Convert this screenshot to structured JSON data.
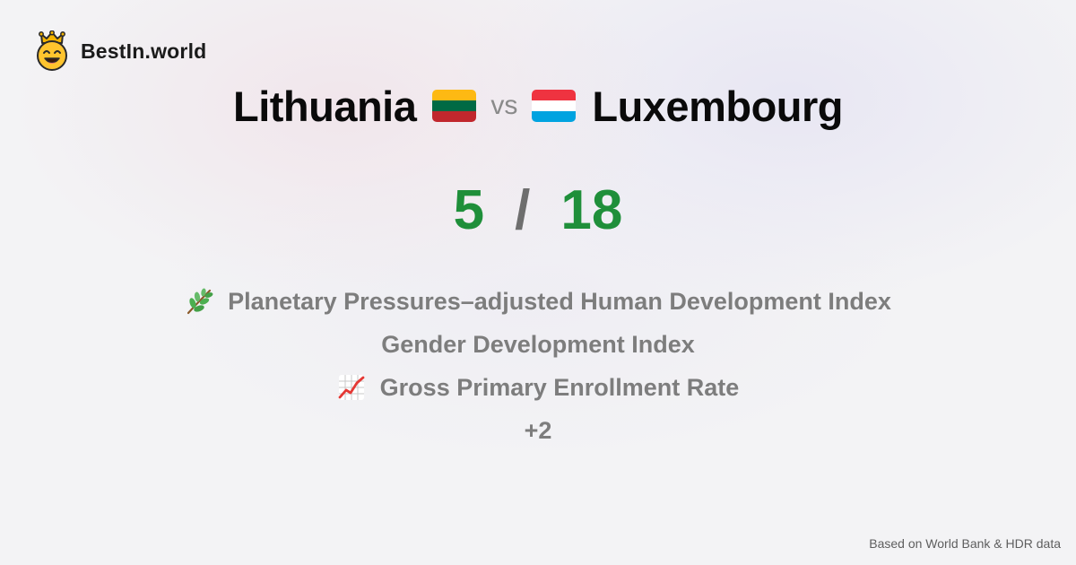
{
  "brand": {
    "name": "BestIn.world",
    "icon": "crown-smiley-icon"
  },
  "comparison": {
    "country_a": {
      "name": "Lithuania",
      "flag_icon": "lithuania-flag-icon",
      "flag_colors": [
        "#FDB913",
        "#006A44",
        "#C1272D"
      ]
    },
    "vs_label": "vs",
    "country_b": {
      "name": "Luxembourg",
      "flag_icon": "luxembourg-flag-icon",
      "flag_colors": [
        "#EF3340",
        "#FFFFFF",
        "#00A3E0"
      ]
    }
  },
  "score": {
    "left": "5",
    "separator": "/",
    "right": "18",
    "color": "#1f8f3a"
  },
  "metrics": [
    {
      "icon": "herb-icon",
      "label": "Planetary Pressures–adjusted Human Development Index"
    },
    {
      "icon": "",
      "label": "Gender Development Index"
    },
    {
      "icon": "chart-increasing-icon",
      "label": "Gross Primary Enrollment Rate"
    },
    {
      "icon": "",
      "label": "+2"
    }
  ],
  "footer": {
    "source": "Based on World Bank & HDR data"
  }
}
